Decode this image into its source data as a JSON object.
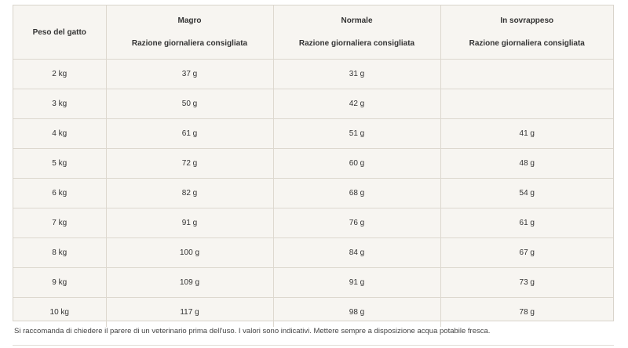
{
  "table": {
    "headers": [
      {
        "title": "Peso del gatto",
        "subtitle": ""
      },
      {
        "title": "Magro",
        "subtitle": "Razione giornaliera consigliata"
      },
      {
        "title": "Normale",
        "subtitle": "Razione giornaliera consigliata"
      },
      {
        "title": "In sovrappeso",
        "subtitle": "Razione giornaliera consigliata"
      }
    ],
    "rows": [
      [
        "2 kg",
        "37 g",
        "31 g",
        ""
      ],
      [
        "3 kg",
        "50 g",
        "42 g",
        ""
      ],
      [
        "4 kg",
        "61 g",
        "51 g",
        "41 g"
      ],
      [
        "5 kg",
        "72 g",
        "60 g",
        "48 g"
      ],
      [
        "6 kg",
        "82 g",
        "68 g",
        "54 g"
      ],
      [
        "7 kg",
        "91 g",
        "76 g",
        "61 g"
      ],
      [
        "8 kg",
        "100 g",
        "84 g",
        "67 g"
      ],
      [
        "9 kg",
        "109 g",
        "91 g",
        "73 g"
      ],
      [
        "10 kg",
        "117 g",
        "98 g",
        "78 g"
      ]
    ]
  },
  "footnote": "Si raccomanda di chiedere il parere di un veterinario prima dell'uso. I valori sono indicativi. Mettere sempre a disposizione acqua potabile fresca."
}
